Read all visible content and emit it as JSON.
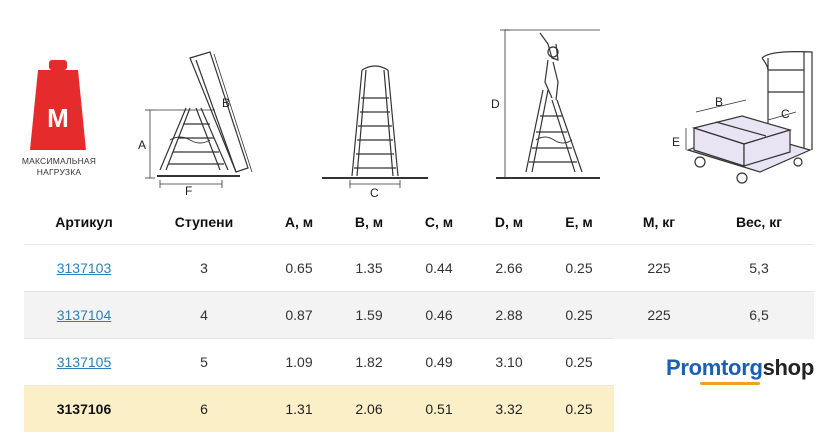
{
  "weight_icon": {
    "letter": "M",
    "caption": "МАКСИМАЛЬНАЯ НАГРУЗКА",
    "color": "#e52b2b"
  },
  "diagram_labels": {
    "a": "A",
    "b": "B",
    "f": "F",
    "c": "C",
    "d": "D",
    "cart_b": "B",
    "cart_c": "C",
    "cart_e": "E"
  },
  "table": {
    "headers": [
      "Артикул",
      "Ступени",
      "A, м",
      "B, м",
      "C, м",
      "D, м",
      "E, м",
      "M, кг",
      "Вес, кг"
    ],
    "rows": [
      [
        "3137103",
        "3",
        "0.65",
        "1.35",
        "0.44",
        "2.66",
        "0.25",
        "225",
        "5,3"
      ],
      [
        "3137104",
        "4",
        "0.87",
        "1.59",
        "0.46",
        "2.88",
        "0.25",
        "225",
        "6,5"
      ],
      [
        "3137105",
        "5",
        "1.09",
        "1.82",
        "0.49",
        "3.10",
        "0.25",
        "",
        ""
      ],
      [
        "3137106",
        "6",
        "1.31",
        "2.06",
        "0.51",
        "3.32",
        "0.25",
        "",
        ""
      ]
    ]
  },
  "brand": {
    "part1": "Promtorg",
    "part2": "shop"
  }
}
